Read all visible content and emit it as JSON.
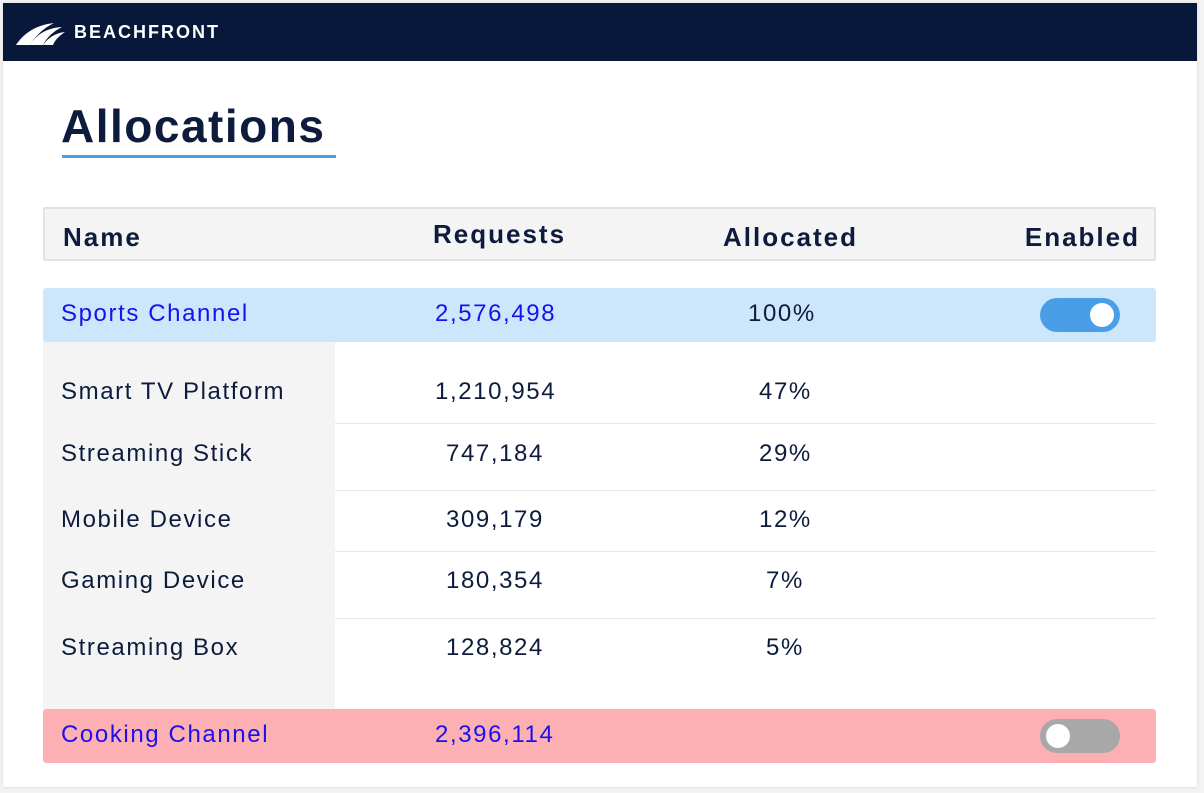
{
  "header": {
    "brand": "BEACHFRONT",
    "logo_icon": "beachfront-wave-logo-icon",
    "background": "#07183a"
  },
  "page": {
    "title": "Allocations",
    "accent": "#4a9de7"
  },
  "table": {
    "columns": [
      "Name",
      "Requests",
      "Allocated",
      "Enabled"
    ],
    "groups": [
      {
        "name": "Sports Channel",
        "requests": "2,576,498",
        "allocated": "100%",
        "enabled": true,
        "row_color": "#cce7fb",
        "children": [
          {
            "name": "Smart TV Platform",
            "requests": "1,210,954",
            "allocated": "47%"
          },
          {
            "name": "Streaming Stick",
            "requests": "747,184",
            "allocated": "29%"
          },
          {
            "name": "Mobile Device",
            "requests": "309,179",
            "allocated": "12%"
          },
          {
            "name": "Gaming Device",
            "requests": "180,354",
            "allocated": "7%"
          },
          {
            "name": "Streaming Box",
            "requests": "128,824",
            "allocated": "5%"
          }
        ]
      },
      {
        "name": "Cooking Channel",
        "requests": "2,396,114",
        "allocated": "",
        "enabled": false,
        "row_color": "#fdb0b4",
        "children": []
      }
    ],
    "link_color": "#1a10ee",
    "toggle_on_color": "#4a9ee8",
    "toggle_off_color": "#a8a8a8"
  }
}
